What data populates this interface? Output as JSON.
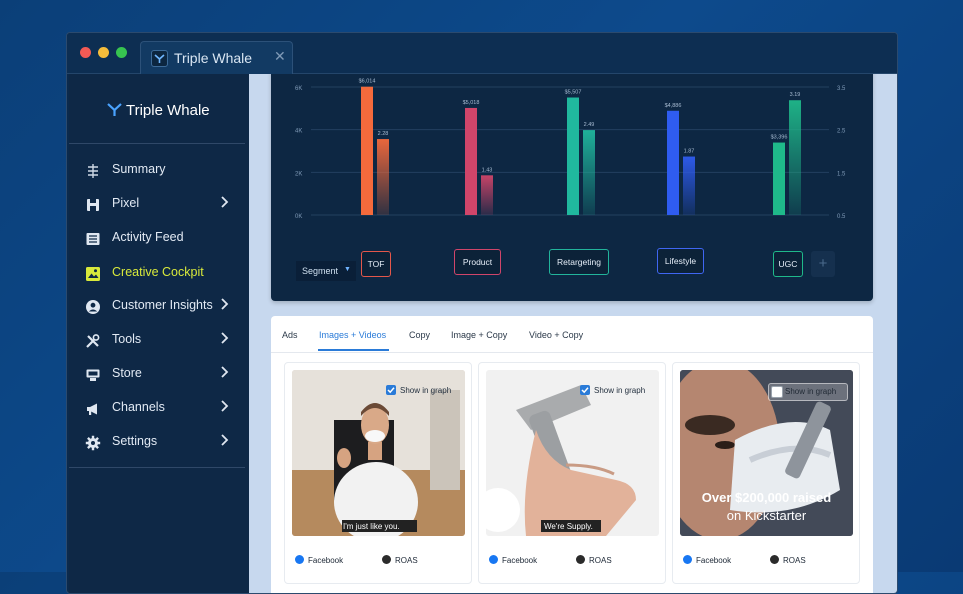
{
  "window": {
    "tab_title": "Triple Whale",
    "tab_close": "✕"
  },
  "sidebar": {
    "brand": "Triple Whale",
    "items": [
      {
        "label": "Summary",
        "icon": "summary-icon",
        "has_chevron": false
      },
      {
        "label": "Pixel",
        "icon": "pixel-icon",
        "has_chevron": true
      },
      {
        "label": "Activity Feed",
        "icon": "activity-feed-icon",
        "has_chevron": false
      },
      {
        "label": "Creative Cockpit",
        "icon": "image-icon",
        "has_chevron": false,
        "active": true
      },
      {
        "label": "Customer Insights",
        "icon": "user-circle-icon",
        "has_chevron": true
      },
      {
        "label": "Tools",
        "icon": "tools-icon",
        "has_chevron": true
      },
      {
        "label": "Store",
        "icon": "store-icon",
        "has_chevron": true
      },
      {
        "label": "Channels",
        "icon": "megaphone-icon",
        "has_chevron": true
      },
      {
        "label": "Settings",
        "icon": "gear-icon",
        "has_chevron": true
      }
    ]
  },
  "chart_data": {
    "type": "bar",
    "categories": [
      "TOF",
      "Product",
      "Retargeting",
      "Lifestyle",
      "UGC"
    ],
    "y_left_ticks": [
      "0K",
      "2K",
      "4K",
      "6K"
    ],
    "y_right_ticks": [
      "0.5",
      "1.5",
      "2.5",
      "3.5"
    ],
    "ylim_left": [
      0,
      6000
    ],
    "ylim_right": [
      0.5,
      3.5
    ],
    "series": [
      {
        "values": [
          6014,
          5018,
          5507,
          4886,
          3396
        ],
        "labels": [
          "$6,014",
          "$5,018",
          "$5,507",
          "$4,886",
          "$3,396"
        ],
        "axis": "left"
      },
      {
        "values": [
          2.28,
          1.43,
          2.49,
          1.87,
          3.19
        ],
        "labels": [
          "2.28",
          "1.43",
          "2.49",
          "1.87",
          "3.19"
        ],
        "axis": "right"
      }
    ],
    "colors": [
      "#f46a3c",
      "#d0456a",
      "#20b89e",
      "#2f5cf0",
      "#1fb98a"
    ],
    "grid": true
  },
  "segment": {
    "label": "Segment",
    "arrow": "▼"
  },
  "segment_buttons": [
    {
      "label": "TOF",
      "color": "#e4574a"
    },
    {
      "label": "Product",
      "color": "#d0456a"
    },
    {
      "label": "Retargeting",
      "color": "#22b49b"
    },
    {
      "label": "Lifestyle",
      "color": "#3f66f2"
    },
    {
      "label": "UGC",
      "color": "#1fb98a"
    }
  ],
  "add_button": "+",
  "content_tabs": [
    "Ads",
    "Images + Videos",
    "Copy",
    "Image + Copy",
    "Video + Copy"
  ],
  "active_content_tab": "Images + Videos",
  "creatives": [
    {
      "show_label": "Show in graph",
      "checked": true,
      "caption": "I'm just like you.",
      "source": "Facebook",
      "metric": "ROAS"
    },
    {
      "show_label": "Show in graph",
      "checked": true,
      "caption": "We're Supply.",
      "source": "Facebook",
      "metric": "ROAS"
    },
    {
      "show_label": "Show in graph",
      "checked": false,
      "caption_line1": "Over $200,000 raised",
      "caption_line2": "on Kickstarter",
      "source": "Facebook",
      "metric": "ROAS"
    }
  ]
}
